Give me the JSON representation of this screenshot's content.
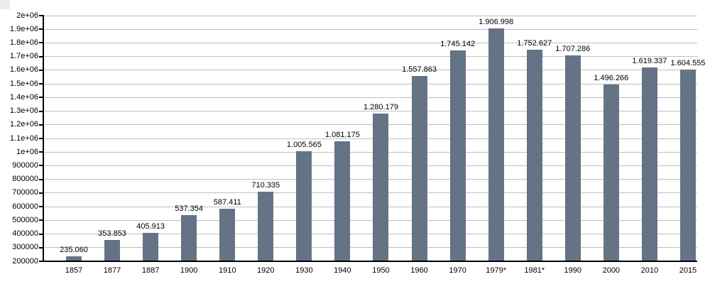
{
  "chart_data": {
    "type": "bar",
    "title": "",
    "xlabel": "",
    "ylabel": "",
    "categories": [
      "1857",
      "1877",
      "1887",
      "1900",
      "1910",
      "1920",
      "1930",
      "1940",
      "1950",
      "1960",
      "1970",
      "1979*",
      "1981*",
      "1990",
      "2000",
      "2010",
      "2015"
    ],
    "values": [
      235060,
      353853,
      405913,
      537354,
      587411,
      710335,
      1005565,
      1081175,
      1280179,
      1557863,
      1745142,
      1906998,
      1752627,
      1707286,
      1496266,
      1619337,
      1604555
    ],
    "value_labels": [
      "235.060",
      "353.853",
      "405.913",
      "537.354",
      "587.411",
      "710.335",
      "1.005.565",
      "1.081.175",
      "1.280.179",
      "1.557.863",
      "1.745.142",
      "1.906.998",
      "1.752.627",
      "1.707.286",
      "1.496.266",
      "1.619.337",
      "1.604.555"
    ],
    "ylim": [
      200000,
      2000000
    ],
    "y_ticks": [
      {
        "value": 200000,
        "label": "200000"
      },
      {
        "value": 300000,
        "label": "300000"
      },
      {
        "value": 400000,
        "label": "400000"
      },
      {
        "value": 500000,
        "label": "500000"
      },
      {
        "value": 600000,
        "label": "600000"
      },
      {
        "value": 700000,
        "label": "700000"
      },
      {
        "value": 800000,
        "label": "800000"
      },
      {
        "value": 900000,
        "label": "900000"
      },
      {
        "value": 1000000,
        "label": "1e+06"
      },
      {
        "value": 1100000,
        "label": "1.1e+06"
      },
      {
        "value": 1200000,
        "label": "1.2e+06"
      },
      {
        "value": 1300000,
        "label": "1.3e+06"
      },
      {
        "value": 1400000,
        "label": "1.4e+06"
      },
      {
        "value": 1500000,
        "label": "1.5e+06"
      },
      {
        "value": 1600000,
        "label": "1.6e+06"
      },
      {
        "value": 1700000,
        "label": "1.7e+06"
      },
      {
        "value": 1800000,
        "label": "1.8e+06"
      },
      {
        "value": 1900000,
        "label": "1.9e+06"
      },
      {
        "value": 2000000,
        "label": "2e+06"
      }
    ],
    "grid": true,
    "legend": "none",
    "colors": {
      "bar": "#657386",
      "gridline": "#bcbfc3",
      "axis": "#000000",
      "text": "#000000",
      "background": "#ffffff"
    }
  }
}
